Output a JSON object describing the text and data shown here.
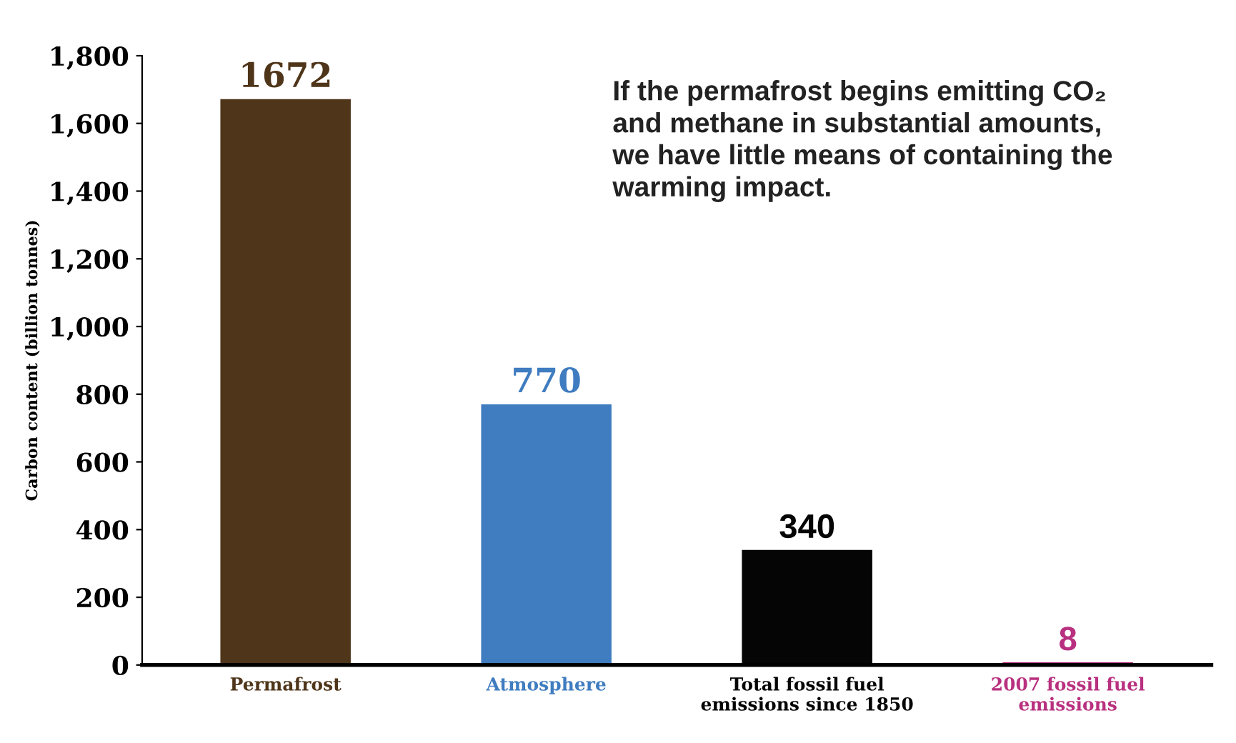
{
  "chart_data": {
    "type": "bar",
    "ylabel": "Carbon content (billion tonnes)",
    "categories": [
      "Permafrost",
      "Atmosphere",
      "Total fossil fuel\nemissions since 1850",
      "2007 fossil fuel\nemissions"
    ],
    "values": [
      1672,
      770,
      340,
      8
    ],
    "colors": [
      "#4f3519",
      "#3f7cc0",
      "#050505",
      "#b8307f"
    ],
    "ylim": [
      0,
      1800
    ],
    "yticks": [
      0,
      {
        "value": 200,
        "label": "200"
      },
      {
        "value": 400,
        "label": "400"
      },
      {
        "value": 600,
        "label": "600"
      },
      {
        "value": 800,
        "label": "800"
      },
      {
        "value": 1000,
        "label": "1,000"
      },
      {
        "value": 1200,
        "label": "1,200"
      },
      {
        "value": 1400,
        "label": "1,400"
      },
      {
        "value": 1600,
        "label": "1,600"
      },
      {
        "value": 1800,
        "label": "1,800"
      }
    ],
    "grid": false,
    "data_labels": true,
    "annotations": [
      "If the permafrost begins emitting CO₂\nand methane in substantial amounts,\nwe have little means of containing the\nwarming impact."
    ]
  }
}
